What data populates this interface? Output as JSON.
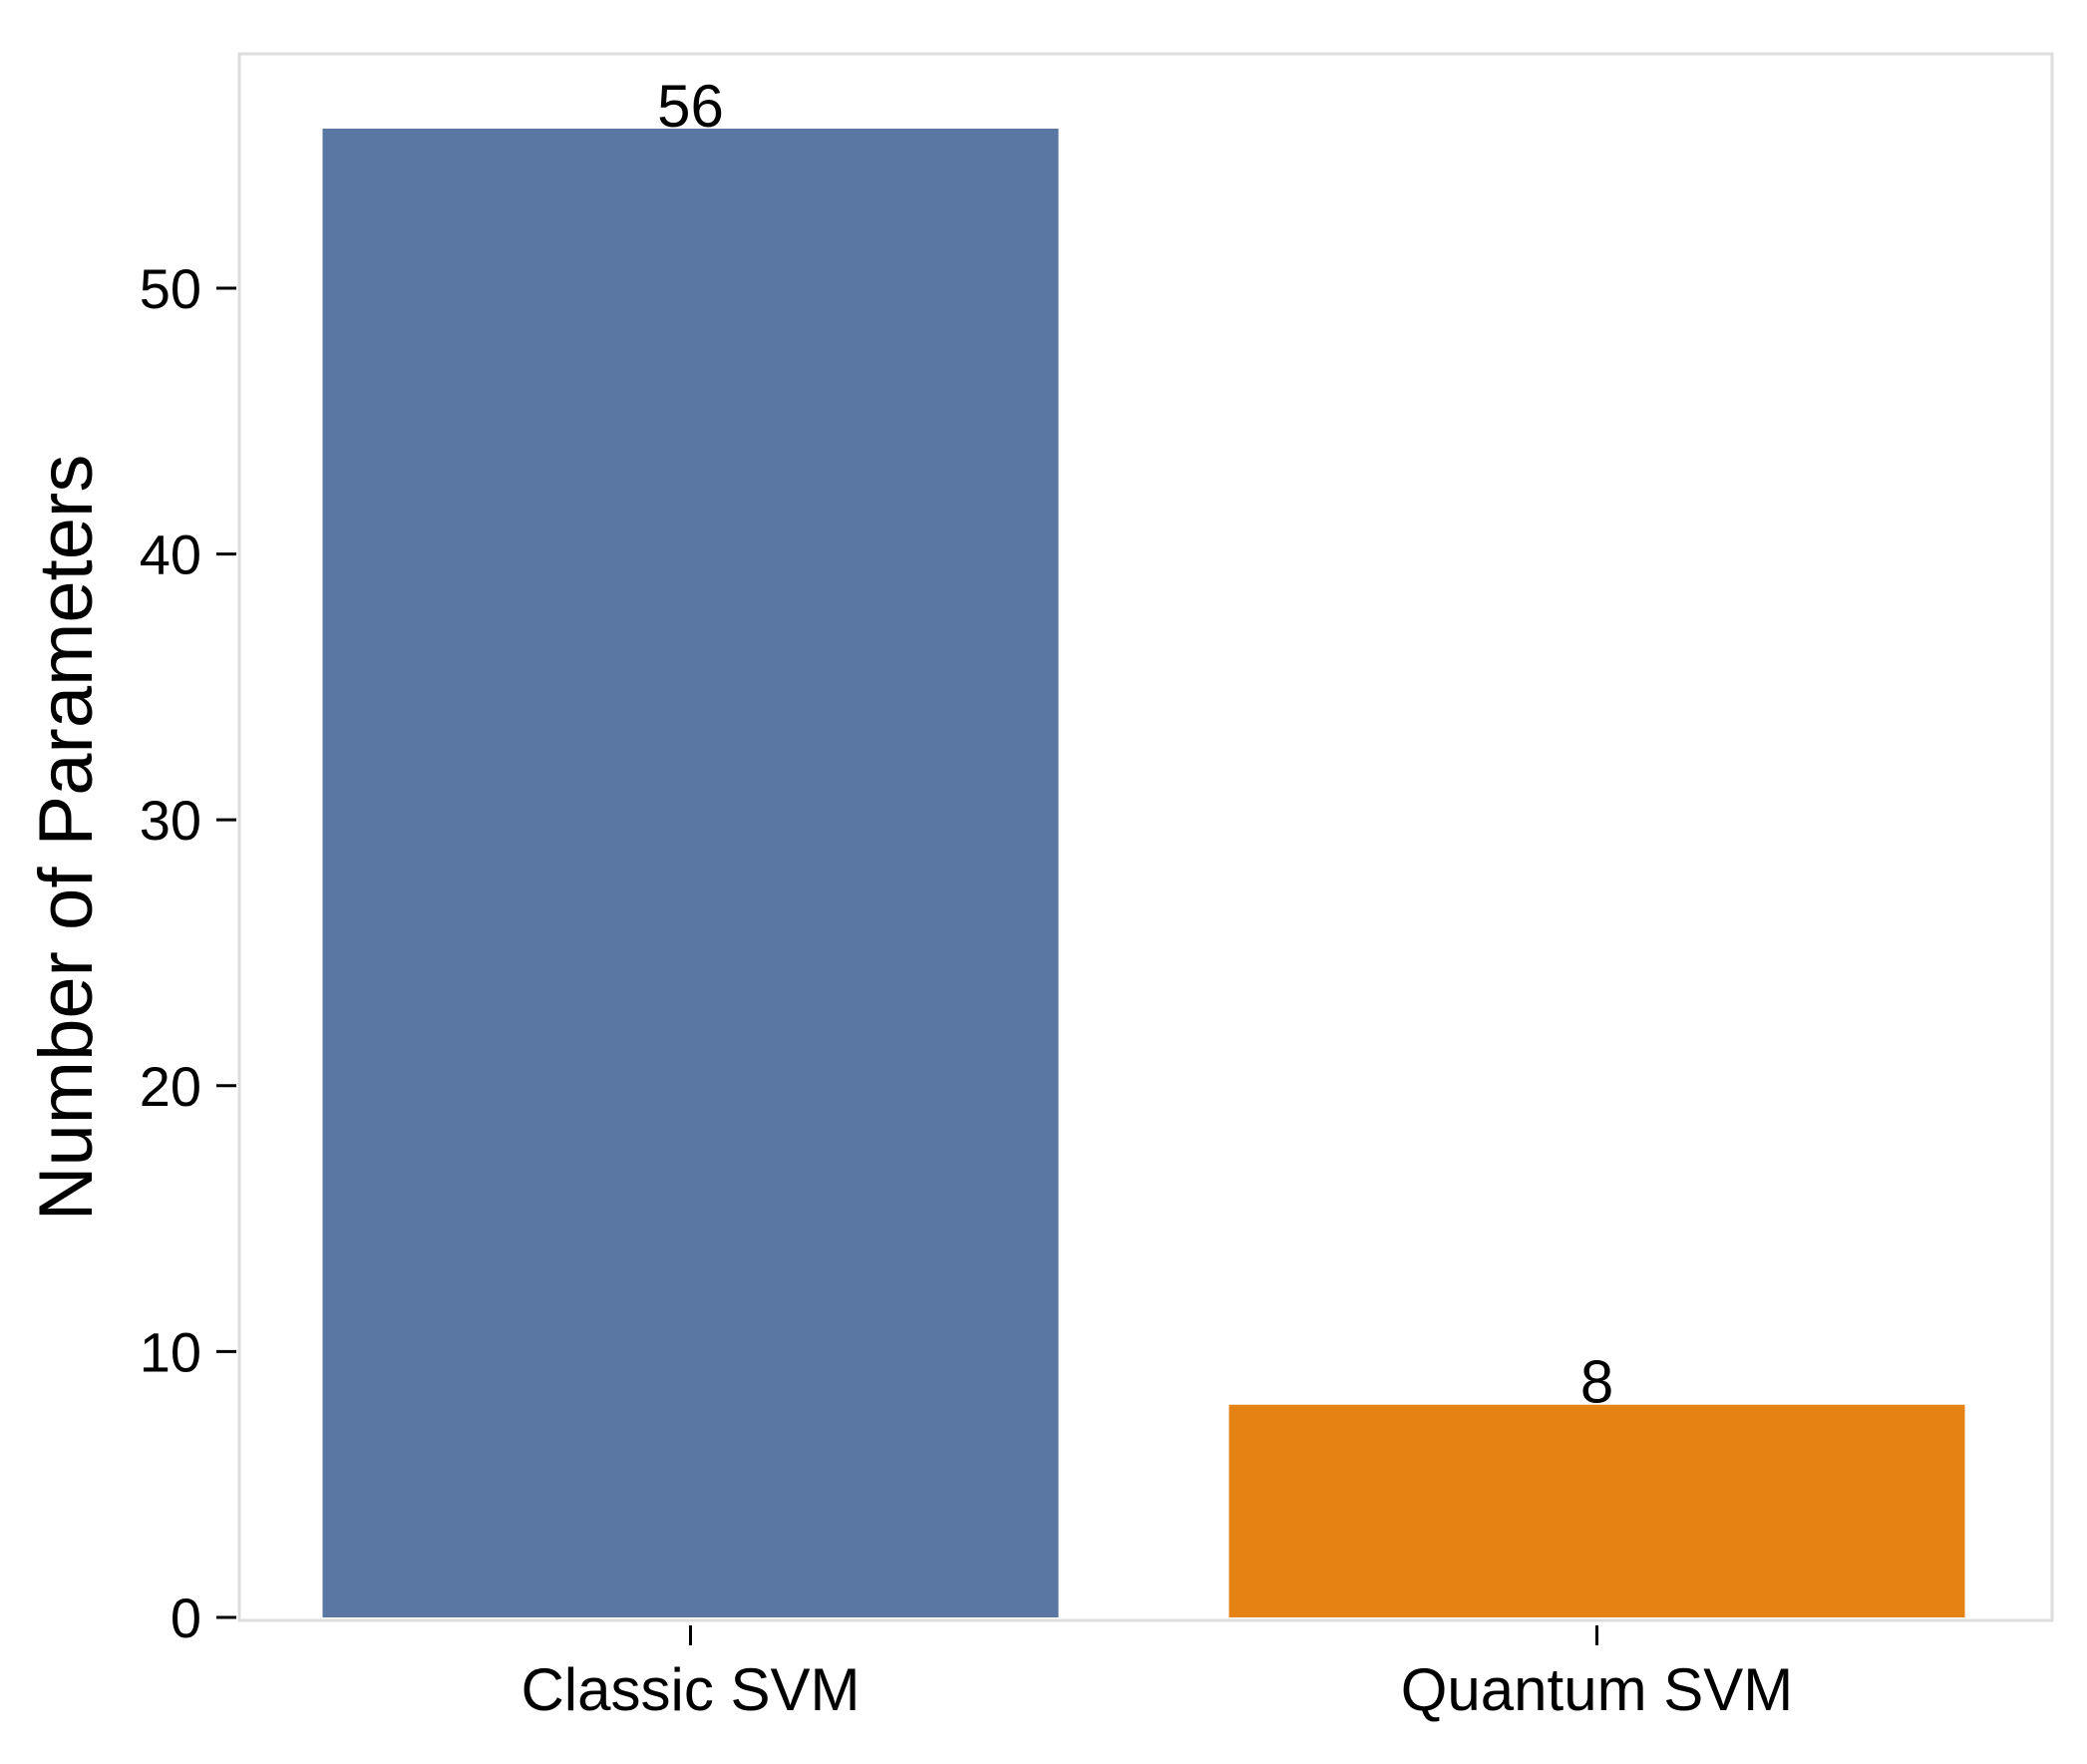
{
  "chart_data": {
    "type": "bar",
    "categories": [
      "Classic SVM",
      "Quantum SVM"
    ],
    "values": [
      56,
      8
    ],
    "data_labels": [
      "56",
      "8"
    ],
    "colors": [
      "#5a76a3",
      "#e48213"
    ],
    "title": "",
    "xlabel": "",
    "ylabel": "Number of Parameters",
    "ylim": [
      0,
      58.8
    ],
    "yticks": [
      0,
      10,
      20,
      30,
      40,
      50
    ],
    "ytick_labels": [
      "0",
      "10",
      "20",
      "30",
      "40",
      "50"
    ],
    "grid": false,
    "legend": "none",
    "frame_color": "#dddddd"
  }
}
